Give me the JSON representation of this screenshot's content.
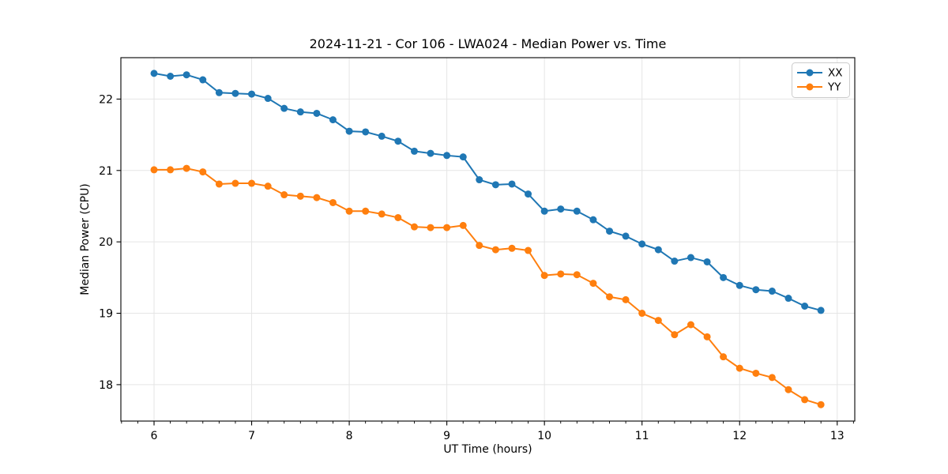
{
  "chart_data": {
    "type": "line",
    "title": "2024-11-21 - Cor 106 - LWA024 - Median Power vs. Time",
    "xlabel": "UT Time (hours)",
    "ylabel": "Median Power (CPU)",
    "xlim": [
      5.66,
      13.18
    ],
    "ylim": [
      17.49,
      22.58
    ],
    "xticks": [
      6,
      7,
      8,
      9,
      10,
      11,
      12,
      13
    ],
    "yticks": [
      18,
      19,
      20,
      21,
      22
    ],
    "x_minor_tick_step": 0.1667,
    "grid": true,
    "legend_position": "upper right",
    "x": [
      6.0,
      6.167,
      6.333,
      6.5,
      6.667,
      6.833,
      7.0,
      7.167,
      7.333,
      7.5,
      7.667,
      7.833,
      8.0,
      8.167,
      8.333,
      8.5,
      8.667,
      8.833,
      9.0,
      9.167,
      9.333,
      9.5,
      9.667,
      9.833,
      10.0,
      10.167,
      10.333,
      10.5,
      10.667,
      10.833,
      11.0,
      11.167,
      11.333,
      11.5,
      11.667,
      11.833,
      12.0,
      12.167,
      12.333,
      12.5,
      12.667,
      12.833
    ],
    "series": [
      {
        "name": "XX",
        "color": "#1f77b4",
        "values": [
          22.36,
          22.32,
          22.34,
          22.27,
          22.09,
          22.08,
          22.07,
          22.01,
          21.87,
          21.82,
          21.8,
          21.71,
          21.55,
          21.54,
          21.48,
          21.41,
          21.27,
          21.24,
          21.21,
          21.19,
          20.87,
          20.8,
          20.81,
          20.67,
          20.43,
          20.46,
          20.43,
          20.31,
          20.15,
          20.08,
          19.97,
          19.89,
          19.73,
          19.78,
          19.72,
          19.5,
          19.39,
          19.33,
          19.31,
          19.21,
          19.1,
          19.04
        ]
      },
      {
        "name": "YY",
        "color": "#ff7f0e",
        "values": [
          21.01,
          21.01,
          21.03,
          20.98,
          20.81,
          20.82,
          20.82,
          20.78,
          20.66,
          20.64,
          20.62,
          20.55,
          20.43,
          20.43,
          20.39,
          20.34,
          20.21,
          20.2,
          20.2,
          20.23,
          19.95,
          19.89,
          19.91,
          19.88,
          19.53,
          19.55,
          19.54,
          19.42,
          19.23,
          19.19,
          19.0,
          18.9,
          18.7,
          18.84,
          18.67,
          18.39,
          18.23,
          18.16,
          18.1,
          17.93,
          17.79,
          17.72
        ]
      }
    ]
  },
  "style": {
    "grid_color": "#e5e5e5",
    "spine_color": "#000000",
    "legend_border_color": "#cccccc",
    "legend_background": "#ffffff"
  }
}
